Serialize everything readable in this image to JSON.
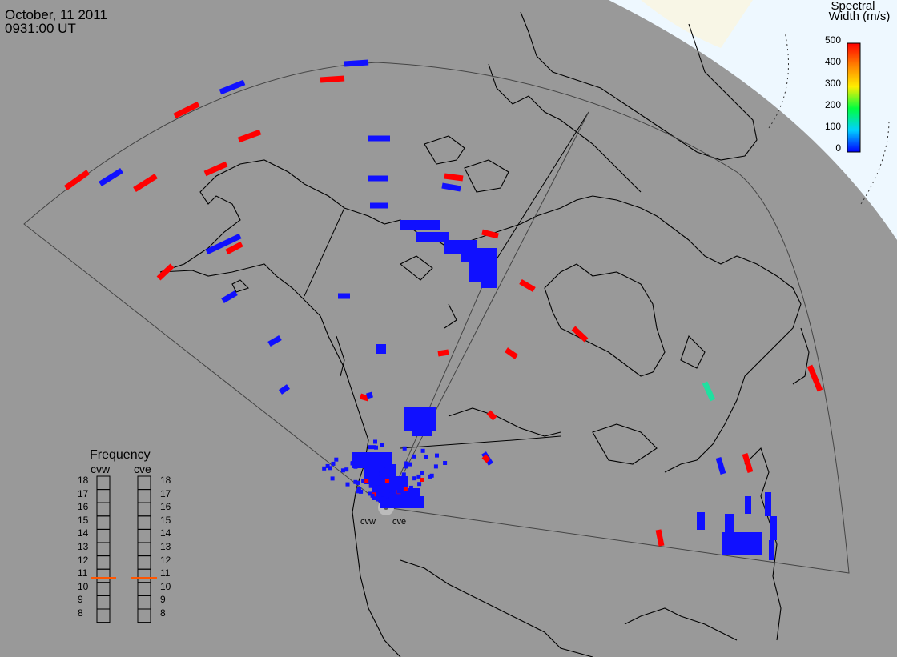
{
  "header": {
    "date": "October, 11 2011",
    "time": "0931:00 UT"
  },
  "colorbar": {
    "title_line1": "Spectral",
    "title_line2": "Width (m/s)",
    "ticks": [
      "500",
      "400",
      "300",
      "200",
      "100",
      "0"
    ],
    "min": 0,
    "max": 500
  },
  "frequency_panel": {
    "title": "Frequency",
    "columns": [
      {
        "label": "cvw",
        "value": 10.85
      },
      {
        "label": "cve",
        "value": 10.85
      }
    ],
    "levels": [
      "18",
      "17",
      "16",
      "15",
      "14",
      "13",
      "12",
      "11",
      "10",
      "9",
      "8"
    ]
  },
  "radar_sites": [
    {
      "label": "cvw"
    },
    {
      "label": "cve"
    }
  ],
  "colors": {
    "background": "#999999",
    "land_outline": "#000000",
    "fov_outline": "#444444",
    "ocean_light": "#eef8ff",
    "spectral_low": "#1010ff",
    "spectral_high": "#ff0000",
    "spectral_mid": "#20e0a0"
  }
}
